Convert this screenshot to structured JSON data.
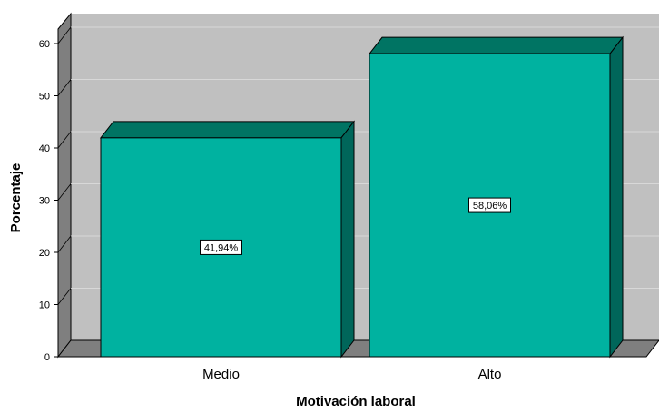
{
  "chart_data": {
    "type": "bar",
    "style": "3d",
    "categories": [
      "Medio",
      "Alto"
    ],
    "values": [
      41.94,
      58.06
    ],
    "value_labels": [
      "41,94%",
      "58,06%"
    ],
    "title": "",
    "xlabel": "Motivación laboral",
    "ylabel": "Porcentaje",
    "ylim": [
      0,
      60
    ],
    "yticks": [
      0,
      10,
      20,
      30,
      40,
      50,
      60
    ],
    "grid": true,
    "legend": "none",
    "colors": {
      "bar_front": "#00B2A0",
      "bar_top": "#007463",
      "bar_side": "#00665A",
      "wall": "#C0C0C0",
      "floor": "#7F7F7F",
      "gridline": "#D8D8D8"
    }
  }
}
